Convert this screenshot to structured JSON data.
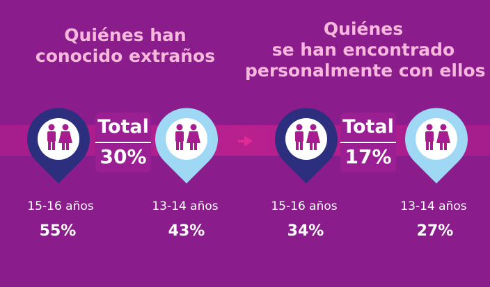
{
  "left_panel": {
    "title_line1": "Quiénes han",
    "title_line2": "conocido extraños",
    "total_label": "Total",
    "total_value": "30%",
    "group_older_label": "15-16 años",
    "group_older_value": "55%",
    "group_younger_label": "13-14 años",
    "group_younger_value": "43%"
  },
  "right_panel": {
    "title_line1": "Quiénes",
    "title_line2": "se han encontrado",
    "title_line3": "personalmente con ellos",
    "total_label": "Total",
    "total_value": "17%",
    "group_older_label": "15-16 años",
    "group_older_value": "34%",
    "group_younger_label": "13-14 años",
    "group_younger_value": "27%"
  },
  "colors": {
    "background": "#8b1c8c",
    "band": "#b8208e",
    "title": "#f6b9dc",
    "pin_dark": "#2c2f7e",
    "pin_light": "#9ed8f4",
    "icon_fill": "#a51d8e",
    "arrow": "#e02a96"
  },
  "icons": [
    "people-pin-icon-dark",
    "people-pin-icon-light",
    "arrow-right-icon"
  ]
}
